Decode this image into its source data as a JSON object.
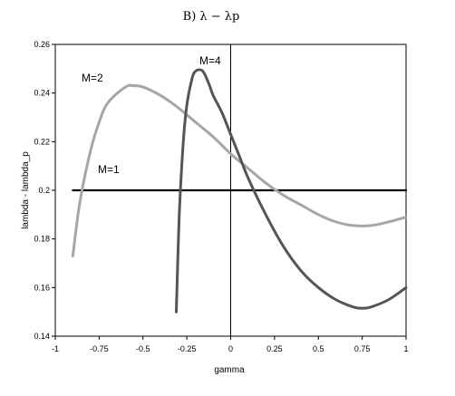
{
  "chart_data": {
    "type": "line",
    "title": "B) λ − λp",
    "xlabel": "gamma",
    "ylabel": "lambda - lambda_p",
    "xlim": [
      -1,
      1
    ],
    "ylim": [
      0.14,
      0.26
    ],
    "x_ticks": [
      "-1",
      "-0.75",
      "-0.5",
      "-0.25",
      "0",
      "0.25",
      "0.5",
      "0.75",
      "1"
    ],
    "y_ticks": [
      "0.14",
      "0.16",
      "0.18",
      "0.2",
      "0.22",
      "0.24",
      "0.26"
    ],
    "grid": false,
    "legend": "none",
    "series": [
      {
        "name": "M=1",
        "color": "#000000",
        "x": [
          -0.9,
          1.0
        ],
        "y": [
          0.2,
          0.2
        ]
      },
      {
        "name": "M=2",
        "color": "#a6a6a6",
        "x": [
          -0.9,
          -0.86,
          -0.8,
          -0.75,
          -0.7,
          -0.6,
          -0.55,
          -0.5,
          -0.4,
          -0.3,
          -0.2,
          -0.1,
          0.0,
          0.1,
          0.2,
          0.3,
          0.4,
          0.5,
          0.6,
          0.7,
          0.8,
          0.9,
          1.0
        ],
        "y": [
          0.173,
          0.195,
          0.216,
          0.228,
          0.236,
          0.2425,
          0.243,
          0.2425,
          0.239,
          0.234,
          0.228,
          0.222,
          0.215,
          0.209,
          0.203,
          0.198,
          0.194,
          0.19,
          0.187,
          0.1855,
          0.1855,
          0.187,
          0.189
        ]
      },
      {
        "name": "M=4",
        "color": "#555555",
        "x": [
          -0.31,
          -0.3,
          -0.29,
          -0.27,
          -0.25,
          -0.22,
          -0.2,
          -0.17,
          -0.15,
          -0.12,
          -0.1,
          -0.05,
          0.0,
          0.05,
          0.1,
          0.2,
          0.3,
          0.4,
          0.5,
          0.6,
          0.7,
          0.75,
          0.8,
          0.9,
          1.0
        ],
        "y": [
          0.15,
          0.175,
          0.195,
          0.22,
          0.235,
          0.246,
          0.249,
          0.2495,
          0.248,
          0.243,
          0.239,
          0.232,
          0.223,
          0.214,
          0.205,
          0.19,
          0.177,
          0.167,
          0.16,
          0.155,
          0.152,
          0.1515,
          0.152,
          0.155,
          0.16
        ]
      }
    ],
    "annotations": [
      "M=1",
      "M=2",
      "M=4"
    ]
  }
}
